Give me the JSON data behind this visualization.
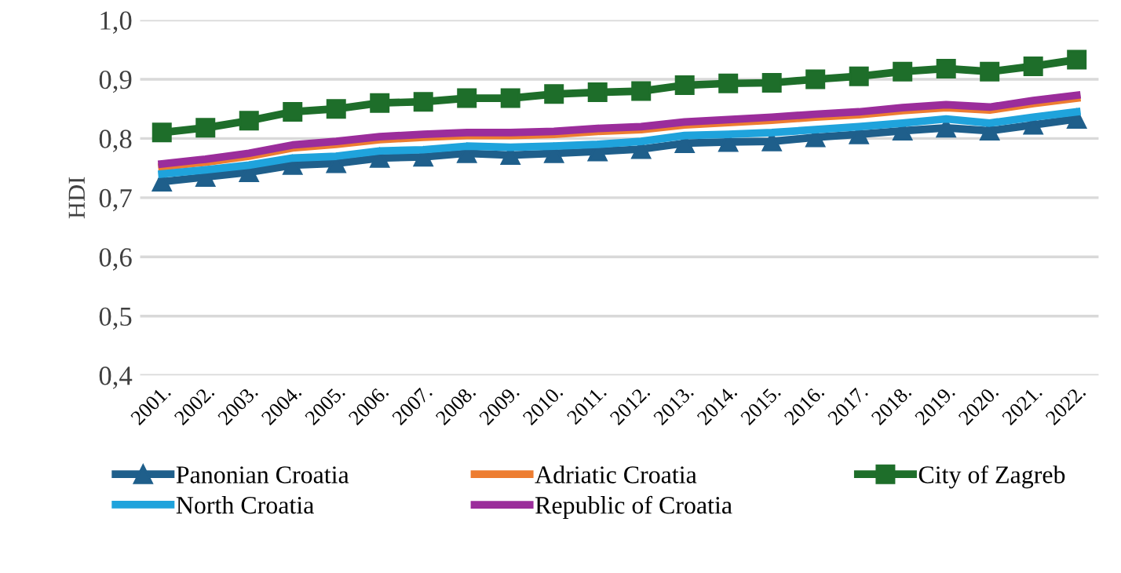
{
  "chart_data": {
    "type": "line",
    "ylabel": "HDI",
    "categories": [
      "2001.",
      "2002.",
      "2003.",
      "2004.",
      "2005.",
      "2006.",
      "2007.",
      "2008.",
      "2009.",
      "2010.",
      "2011.",
      "2012.",
      "2013.",
      "2014.",
      "2015.",
      "2016.",
      "2017.",
      "2018.",
      "2019.",
      "2020.",
      "2021.",
      "2022."
    ],
    "series": [
      {
        "name": "Panonian Croatia",
        "color": "#1f5f8b",
        "marker": "triangle",
        "values": [
          0.727,
          0.735,
          0.743,
          0.755,
          0.758,
          0.767,
          0.769,
          0.775,
          0.772,
          0.775,
          0.778,
          0.782,
          0.792,
          0.794,
          0.795,
          0.802,
          0.807,
          0.813,
          0.818,
          0.813,
          0.823,
          0.833
        ]
      },
      {
        "name": "Adriatic Croatia",
        "color": "#ed7d31",
        "marker": "none",
        "values": [
          0.752,
          0.76,
          0.77,
          0.784,
          0.79,
          0.798,
          0.802,
          0.805,
          0.805,
          0.807,
          0.812,
          0.815,
          0.823,
          0.827,
          0.831,
          0.836,
          0.84,
          0.847,
          0.852,
          0.848,
          0.859,
          0.868
        ]
      },
      {
        "name": "City of Zagreb",
        "color": "#1e6e2a",
        "marker": "square",
        "values": [
          0.81,
          0.818,
          0.83,
          0.845,
          0.85,
          0.86,
          0.862,
          0.868,
          0.868,
          0.875,
          0.878,
          0.88,
          0.89,
          0.893,
          0.894,
          0.9,
          0.905,
          0.913,
          0.918,
          0.913,
          0.922,
          0.933
        ]
      },
      {
        "name": "North Croatia",
        "color": "#1fa3dc",
        "marker": "none",
        "values": [
          0.74,
          0.747,
          0.755,
          0.767,
          0.77,
          0.779,
          0.781,
          0.787,
          0.785,
          0.787,
          0.79,
          0.795,
          0.805,
          0.807,
          0.81,
          0.815,
          0.82,
          0.826,
          0.833,
          0.826,
          0.836,
          0.845
        ]
      },
      {
        "name": "Republic of Croatia",
        "color": "#9b2d9b",
        "marker": "none",
        "values": [
          0.757,
          0.765,
          0.775,
          0.789,
          0.795,
          0.803,
          0.807,
          0.81,
          0.81,
          0.812,
          0.817,
          0.82,
          0.828,
          0.832,
          0.836,
          0.841,
          0.845,
          0.852,
          0.857,
          0.853,
          0.864,
          0.873
        ]
      }
    ],
    "ylim": [
      0.4,
      1.0
    ],
    "yticks": [
      {
        "value": 0.4,
        "label": "0,4"
      },
      {
        "value": 0.5,
        "label": "0,5"
      },
      {
        "value": 0.6,
        "label": "0,6"
      },
      {
        "value": 0.7,
        "label": "0,7"
      },
      {
        "value": 0.8,
        "label": "0,8"
      },
      {
        "value": 0.9,
        "label": "0,9"
      },
      {
        "value": 1.0,
        "label": "1,0"
      }
    ],
    "grid": "y",
    "legend": "bottom",
    "line_style": "solid"
  }
}
